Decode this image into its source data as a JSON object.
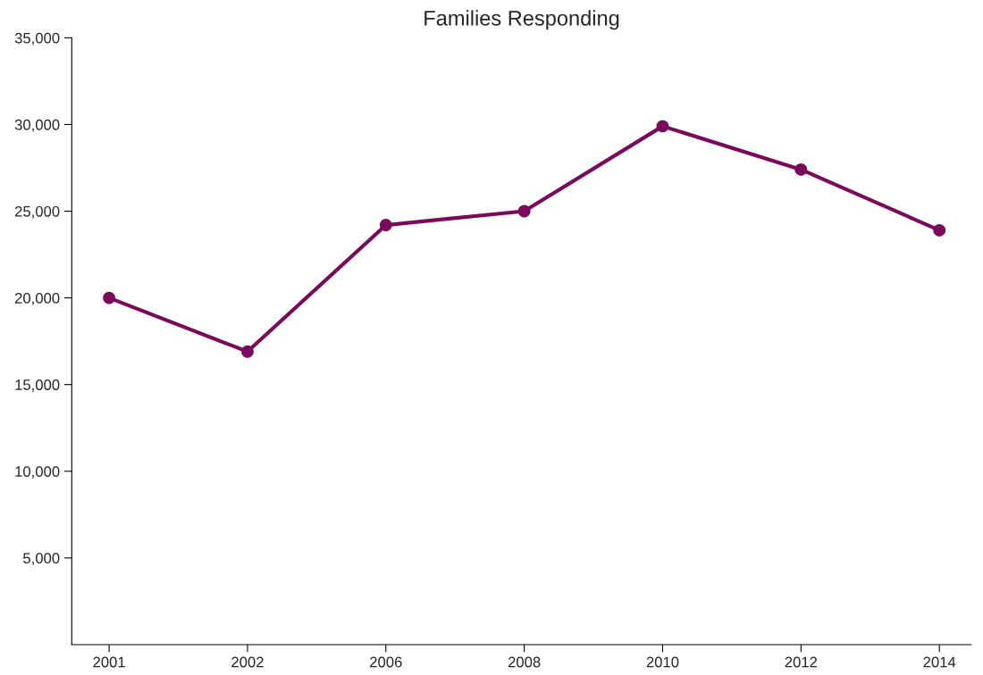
{
  "chart_data": {
    "type": "line",
    "title": "Families Responding",
    "categories": [
      "2001",
      "2002",
      "2006",
      "2008",
      "2010",
      "2012",
      "2014"
    ],
    "series": [
      {
        "color": "#7a0a5c",
        "values": [
          20000,
          16900,
          24200,
          25000,
          29900,
          27400,
          23900
        ]
      }
    ],
    "ylim": [
      0,
      35000
    ],
    "yticks": [
      {
        "value": 5000,
        "label": "5,000"
      },
      {
        "value": 10000,
        "label": "10,000"
      },
      {
        "value": 15000,
        "label": "15,000"
      },
      {
        "value": 20000,
        "label": "20,000"
      },
      {
        "value": 25000,
        "label": "25,000"
      },
      {
        "value": 30000,
        "label": "30,000"
      },
      {
        "value": 35000,
        "label": "35,000"
      }
    ],
    "grid": false,
    "legend": false,
    "marker": "circle",
    "line_style": "solid"
  }
}
